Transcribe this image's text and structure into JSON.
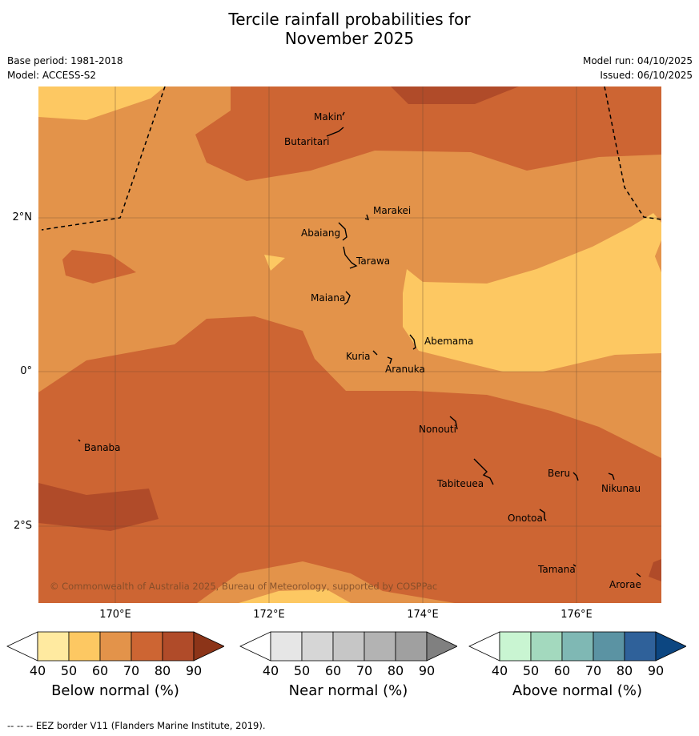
{
  "title": {
    "line1": "Tercile rainfall probabilities for",
    "line2": "November 2025"
  },
  "meta": {
    "base_period": "Base period: 1981-2018",
    "model": "Model: ACCESS-S2",
    "model_run": "Model run: 04/10/2025",
    "issued": "Issued: 06/10/2025"
  },
  "axes": {
    "lon_ticks": [
      "170°E",
      "172°E",
      "174°E",
      "176°E"
    ],
    "lat_ticks": [
      "2°N",
      "0°",
      "2°S"
    ]
  },
  "places": {
    "makin": "Makin",
    "butaritari": "Butaritari",
    "marakei": "Marakei",
    "abaiang": "Abaiang",
    "tarawa": "Tarawa",
    "maiana": "Maiana",
    "abemama": "Abemama",
    "kuria": "Kuria",
    "aranuka": "Aranuka",
    "nonouti": "Nonouti",
    "banaba": "Banaba",
    "beru": "Beru",
    "nikunau": "Nikunau",
    "tabiteuea": "Tabiteuea",
    "onotoa": "Onotoa",
    "tamana": "Tamana",
    "arorae": "Arorae"
  },
  "copyright": "© Commonwealth of Australia 2025, Bureau of Meteorology, supported by COSPPac",
  "colorbars": {
    "ticks": [
      "40",
      "50",
      "60",
      "70",
      "80",
      "90"
    ],
    "below": {
      "label": "Below normal (%)",
      "colors": [
        "#ffffff",
        "#ffeaa0",
        "#fdc862",
        "#e3934a",
        "#cd6533",
        "#b04b29",
        "#8c3418"
      ]
    },
    "near": {
      "label": "Near normal (%)",
      "colors": [
        "#ffffff",
        "#e6e6e6",
        "#d6d6d6",
        "#c6c6c6",
        "#b3b3b3",
        "#a0a0a0",
        "#808080"
      ]
    },
    "above": {
      "label": "Above normal (%)",
      "colors": [
        "#ffffff",
        "#c9f5d2",
        "#a3d9be",
        "#7fb8b4",
        "#5b93a3",
        "#2f619a",
        "#0c4681"
      ]
    }
  },
  "eez_note": "-- -- -- EEZ border V11 (Flanders Marine Institute, 2019)."
}
